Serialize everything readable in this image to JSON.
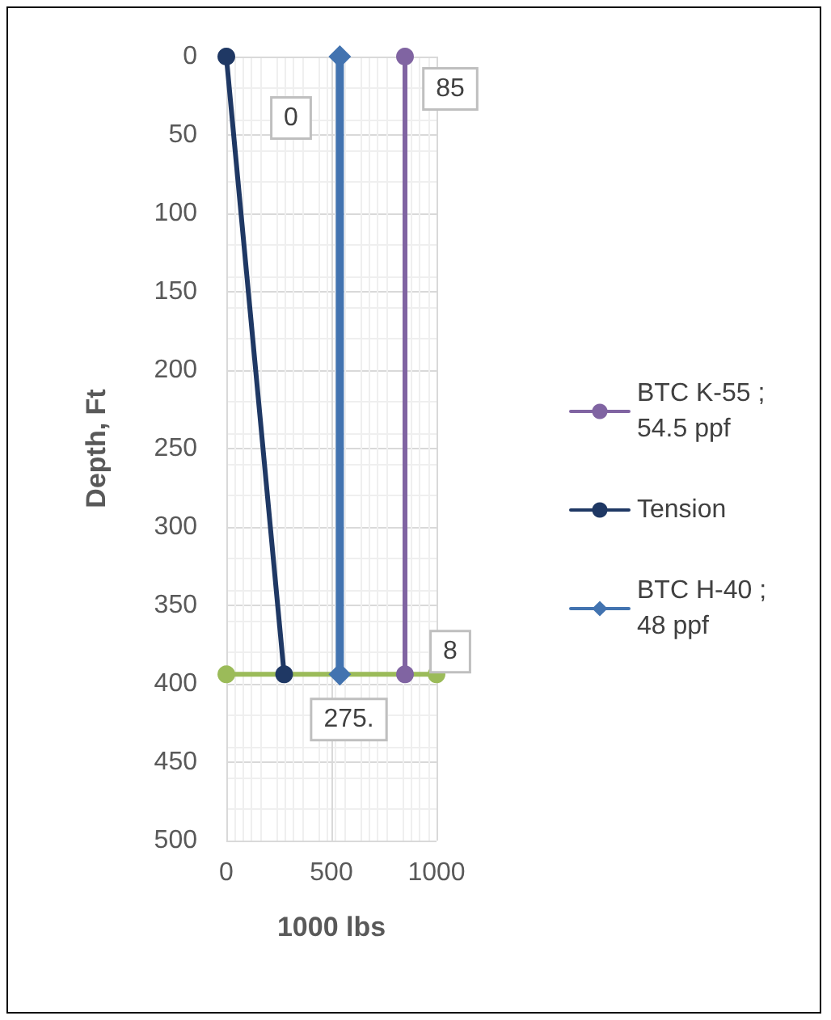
{
  "chart_data": {
    "type": "line",
    "xlabel": "1000 lbs",
    "ylabel": "Depth, Ft",
    "series": [
      {
        "name": "BTC K-55 ; 54.5 ppf",
        "color": "#8064a2",
        "x": [
          850,
          850
        ],
        "values": [
          0,
          394
        ],
        "marker": "circle"
      },
      {
        "name": "Tension",
        "color": "#1f3864",
        "x": [
          0,
          275
        ],
        "values": [
          0,
          394
        ],
        "marker": "circle"
      },
      {
        "name": "BTC H-40 ; 48 ppf",
        "color": "#4273b0",
        "x": [
          540,
          540
        ],
        "values": [
          0,
          394
        ],
        "marker": "diamond"
      },
      {
        "color": "#9bbb59",
        "x": [
          0,
          1000
        ],
        "values": [
          394,
          394
        ],
        "marker": "circle"
      }
    ],
    "xlim": [
      0,
      1000
    ],
    "xticks": [
      0,
      500,
      1000
    ],
    "ylim": [
      500,
      0
    ],
    "yticks": [
      0,
      50,
      100,
      150,
      200,
      250,
      300,
      350,
      400,
      450,
      500
    ],
    "annotations": [
      {
        "text": "0",
        "x": 0,
        "y": 0
      },
      {
        "text": "85",
        "x": 850,
        "y": 0
      },
      {
        "text": "8",
        "x": 850,
        "y": 394
      },
      {
        "text": "275.",
        "x": 275,
        "y": 394
      }
    ],
    "grid": true,
    "legend": "right",
    "line_style": "solid"
  }
}
